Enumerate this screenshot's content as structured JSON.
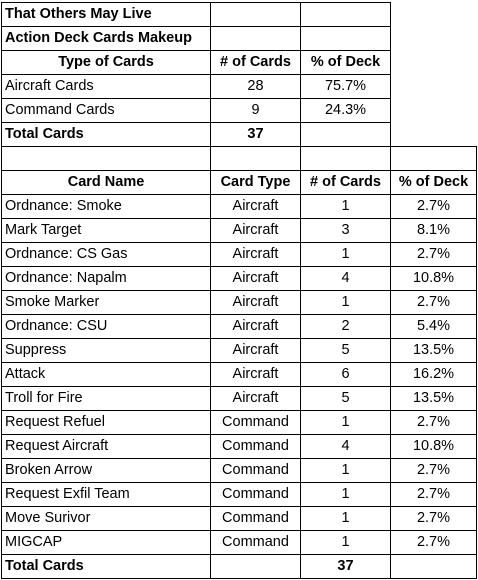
{
  "title": "That Others May Live",
  "subtitle": "Action Deck Cards Makeup",
  "summary": {
    "headers": [
      "Type of Cards",
      "# of Cards",
      "% of Deck"
    ],
    "rows": [
      {
        "type": "Aircraft Cards",
        "count": "28",
        "pct": "75.7%"
      },
      {
        "type": "Command Cards",
        "count": "9",
        "pct": "24.3%"
      }
    ],
    "total_label": "Total Cards",
    "total_count": "37"
  },
  "detail": {
    "headers": [
      "Card Name",
      "Card Type",
      "# of Cards",
      "% of Deck"
    ],
    "rows": [
      {
        "name": "Ordnance: Smoke",
        "type": "Aircraft",
        "count": "1",
        "pct": "2.7%"
      },
      {
        "name": "Mark Target",
        "type": "Aircraft",
        "count": "3",
        "pct": "8.1%"
      },
      {
        "name": "Ordnance: CS Gas",
        "type": "Aircraft",
        "count": "1",
        "pct": "2.7%"
      },
      {
        "name": "Ordnance: Napalm",
        "type": "Aircraft",
        "count": "4",
        "pct": "10.8%"
      },
      {
        "name": "Smoke Marker",
        "type": "Aircraft",
        "count": "1",
        "pct": "2.7%"
      },
      {
        "name": "Ordnance: CSU",
        "type": "Aircraft",
        "count": "2",
        "pct": "5.4%"
      },
      {
        "name": "Suppress",
        "type": "Aircraft",
        "count": "5",
        "pct": "13.5%"
      },
      {
        "name": "Attack",
        "type": "Aircraft",
        "count": "6",
        "pct": "16.2%"
      },
      {
        "name": "Troll for Fire",
        "type": "Aircraft",
        "count": "5",
        "pct": "13.5%"
      },
      {
        "name": "Request Refuel",
        "type": "Command",
        "count": "1",
        "pct": "2.7%"
      },
      {
        "name": "Request Aircraft",
        "type": "Command",
        "count": "4",
        "pct": "10.8%"
      },
      {
        "name": "Broken Arrow",
        "type": "Command",
        "count": "1",
        "pct": "2.7%"
      },
      {
        "name": "Request Exfil Team",
        "type": "Command",
        "count": "1",
        "pct": "2.7%"
      },
      {
        "name": "Move Surivor",
        "type": "Command",
        "count": "1",
        "pct": "2.7%"
      },
      {
        "name": "MIGCAP",
        "type": "Command",
        "count": "1",
        "pct": "2.7%"
      }
    ],
    "total_label": "Total Cards",
    "total_count": "37"
  }
}
